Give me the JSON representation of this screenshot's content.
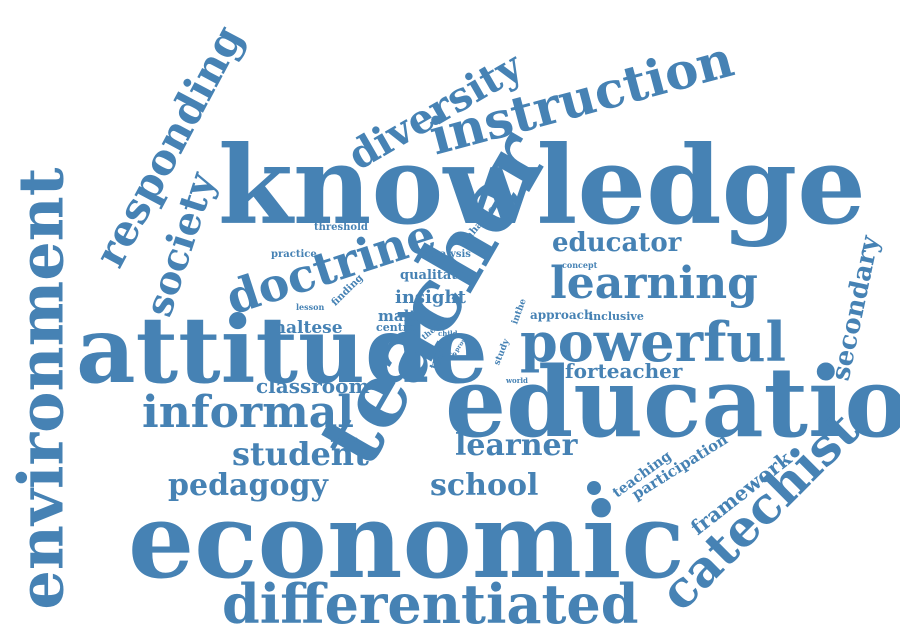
{
  "cloud": {
    "color": "#4682b4",
    "words": [
      {
        "id": "knowledge",
        "text": "knowledge"
      },
      {
        "id": "education",
        "text": "education"
      },
      {
        "id": "economic",
        "text": "economic"
      },
      {
        "id": "attitude",
        "text": "attitude"
      },
      {
        "id": "teacher",
        "text": "teacher"
      },
      {
        "id": "environment",
        "text": "environment"
      },
      {
        "id": "differentiated",
        "text": "differentiated"
      },
      {
        "id": "instruction",
        "text": "instruction"
      },
      {
        "id": "diversity",
        "text": "diversity"
      },
      {
        "id": "responding",
        "text": "responding"
      },
      {
        "id": "society",
        "text": "society"
      },
      {
        "id": "doctrine",
        "text": "doctrine"
      },
      {
        "id": "powerful",
        "text": "powerful"
      },
      {
        "id": "learning",
        "text": "learning"
      },
      {
        "id": "informal",
        "text": "informal"
      },
      {
        "id": "catechist",
        "text": "catechist"
      },
      {
        "id": "secondary",
        "text": "secondary"
      },
      {
        "id": "educator",
        "text": "educator"
      },
      {
        "id": "student",
        "text": "student"
      },
      {
        "id": "learner",
        "text": "learner"
      },
      {
        "id": "pedagogy",
        "text": "pedagogy"
      },
      {
        "id": "school",
        "text": "school"
      },
      {
        "id": "classroom",
        "text": "classroom"
      },
      {
        "id": "forteacher",
        "text": "forteacher"
      },
      {
        "id": "framework",
        "text": "framework"
      },
      {
        "id": "participation",
        "text": "participation"
      },
      {
        "id": "teaching",
        "text": "teaching"
      },
      {
        "id": "maltese",
        "text": "maltese"
      },
      {
        "id": "insight",
        "text": "insight"
      },
      {
        "id": "malta",
        "text": "malta"
      },
      {
        "id": "qualitative",
        "text": "qualitative"
      },
      {
        "id": "approach",
        "text": "approach"
      },
      {
        "id": "inclusive",
        "text": "inclusive"
      },
      {
        "id": "centre",
        "text": "centre"
      },
      {
        "id": "threshold",
        "text": "threshold"
      },
      {
        "id": "practice",
        "text": "practice"
      },
      {
        "id": "analysis",
        "text": "analysis"
      },
      {
        "id": "enhance",
        "text": "enhance"
      },
      {
        "id": "concept",
        "text": "concept"
      },
      {
        "id": "finding",
        "text": "finding"
      },
      {
        "id": "lesson",
        "text": "lesson"
      },
      {
        "id": "type",
        "text": "type"
      },
      {
        "id": "study",
        "text": "study"
      },
      {
        "id": "thesis",
        "text": "thesis"
      },
      {
        "id": "child",
        "text": "child"
      },
      {
        "id": "ace",
        "text": "ace"
      },
      {
        "id": "prov",
        "text": "prov"
      },
      {
        "id": "inthe",
        "text": "inthe"
      },
      {
        "id": "world",
        "text": "world"
      },
      {
        "id": "theme",
        "text": "theme"
      }
    ]
  }
}
